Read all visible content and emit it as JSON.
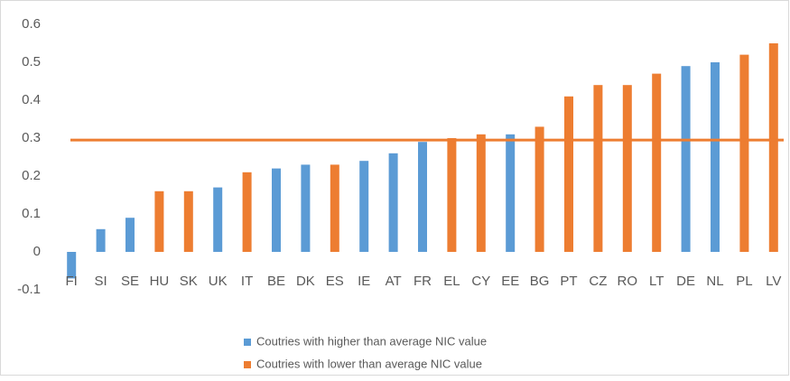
{
  "chart_data": {
    "type": "bar",
    "categories": [
      "FI",
      "SI",
      "SE",
      "HU",
      "SK",
      "UK",
      "IT",
      "BE",
      "DK",
      "ES",
      "IE",
      "AT",
      "FR",
      "EL",
      "CY",
      "EE",
      "BG",
      "PT",
      "CZ",
      "RO",
      "LT",
      "DE",
      "NL",
      "PL",
      "LV"
    ],
    "series": [
      {
        "name": "Coutries with higher than average NIC value",
        "color": "#5b9bd5",
        "values": [
          -0.07,
          0.06,
          0.09,
          null,
          null,
          0.17,
          null,
          0.22,
          0.23,
          null,
          0.24,
          0.26,
          0.29,
          null,
          null,
          0.31,
          null,
          null,
          null,
          null,
          null,
          0.49,
          0.5,
          null,
          null
        ]
      },
      {
        "name": "Coutries with lower than average NIC value",
        "color": "#ed7d31",
        "values": [
          null,
          null,
          null,
          0.16,
          0.16,
          null,
          0.21,
          null,
          null,
          0.23,
          null,
          null,
          null,
          0.3,
          0.31,
          null,
          0.33,
          0.41,
          0.44,
          0.44,
          0.47,
          null,
          null,
          0.52,
          0.55
        ]
      }
    ],
    "average_line": 0.295,
    "average_line_color": "#ed7d31",
    "ylim": [
      -0.1,
      0.6
    ],
    "yticks": [
      -0.1,
      0,
      0.1,
      0.2,
      0.3,
      0.4,
      0.5,
      0.6
    ],
    "grid": false
  }
}
